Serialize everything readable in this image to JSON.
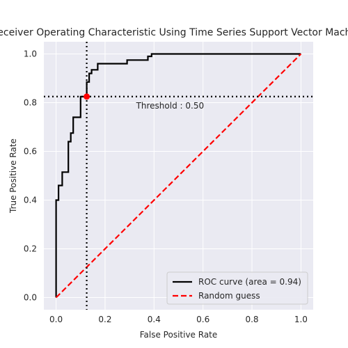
{
  "chart_data": {
    "type": "line",
    "title": "Receiver Operating Characteristic Using Time Series Support Vector Machine",
    "xlabel": "False Positive Rate",
    "ylabel": "True Positive Rate",
    "xlim": [
      -0.05,
      1.05
    ],
    "ylim": [
      -0.05,
      1.05
    ],
    "xticks": [
      "0.0",
      "0.2",
      "0.4",
      "0.6",
      "0.8",
      "1.0"
    ],
    "yticks": [
      "0.0",
      "0.2",
      "0.4",
      "0.6",
      "0.8",
      "1.0"
    ],
    "grid": true,
    "legend_position": "lower-right",
    "threshold": {
      "label": "Threshold : 0.50",
      "fpr": 0.125,
      "tpr": 0.825
    },
    "series": [
      {
        "name": "ROC curve (area = 0.94)",
        "color": "#000000",
        "style": "solid",
        "x": [
          0.0,
          0.0,
          0.01,
          0.01,
          0.025,
          0.025,
          0.035,
          0.035,
          0.05,
          0.05,
          0.06,
          0.06,
          0.07,
          0.07,
          0.08,
          0.08,
          0.1,
          0.1,
          0.125,
          0.125,
          0.135,
          0.135,
          0.145,
          0.145,
          0.17,
          0.17,
          0.29,
          0.29,
          0.375,
          0.375,
          0.39,
          0.39,
          1.0
        ],
        "y": [
          0.0,
          0.4,
          0.4,
          0.46,
          0.46,
          0.515,
          0.515,
          0.515,
          0.515,
          0.64,
          0.64,
          0.675,
          0.675,
          0.74,
          0.74,
          0.74,
          0.74,
          0.825,
          0.825,
          0.885,
          0.885,
          0.92,
          0.92,
          0.935,
          0.935,
          0.96,
          0.96,
          0.975,
          0.975,
          0.99,
          0.99,
          1.0,
          1.0
        ]
      },
      {
        "name": "Random guess",
        "color": "#ff0000",
        "style": "dashed",
        "x": [
          0.0,
          1.0
        ],
        "y": [
          0.0,
          1.0
        ]
      }
    ]
  }
}
